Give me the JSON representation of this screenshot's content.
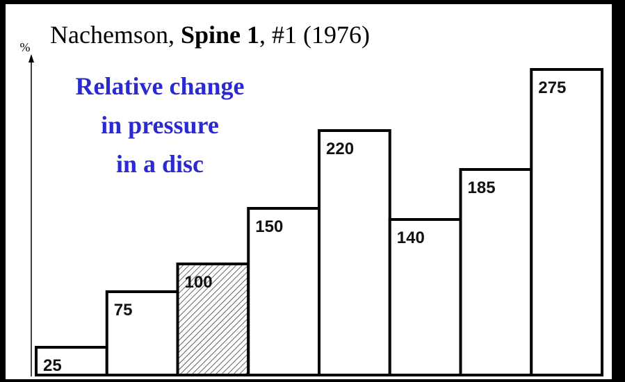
{
  "chart_data": {
    "type": "bar",
    "title_parts": [
      "Nachemson, ",
      "Spine 1",
      ", #1 (1976)"
    ],
    "annotation": [
      "Relative change",
      "in pressure",
      "in a disc"
    ],
    "y_label": "%",
    "values": [
      25,
      75,
      100,
      150,
      220,
      140,
      185,
      275
    ],
    "hatch": [
      false,
      false,
      true,
      false,
      false,
      false,
      false,
      false
    ],
    "color": "#ffffff",
    "annotation_color": "#2a2ad0",
    "ylim": [
      0,
      290
    ]
  }
}
